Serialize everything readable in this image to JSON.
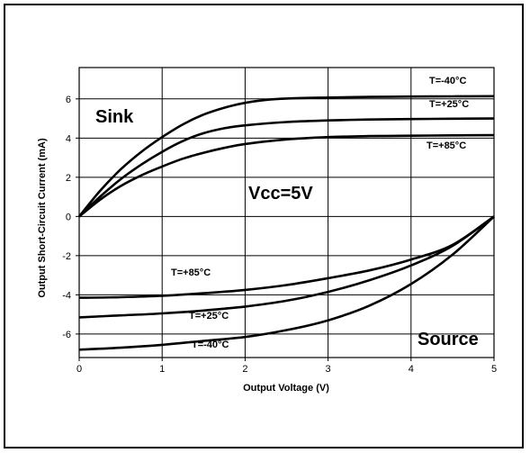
{
  "chart_data": {
    "type": "line",
    "xlabel": "Output Voltage (V)",
    "ylabel": "Output Short-Circuit Current (mA)",
    "xlim": [
      0,
      5
    ],
    "ylim": [
      -7.2,
      7.6
    ],
    "xticks": [
      0,
      1,
      2,
      3,
      4,
      5
    ],
    "yticks": [
      -6,
      -4,
      -2,
      0,
      2,
      4,
      6
    ],
    "xtick_labels": [
      "0",
      "1",
      "2",
      "3",
      "4",
      "5"
    ],
    "ytick_labels": [
      "-6",
      "-4",
      "-2",
      "0",
      "2",
      "4",
      "6"
    ],
    "grid": true,
    "series": [
      {
        "name": "T=-40°C",
        "group": "sink",
        "points": [
          [
            0,
            0
          ],
          [
            0.25,
            1.3
          ],
          [
            0.5,
            2.4
          ],
          [
            0.75,
            3.3
          ],
          [
            1,
            4.05
          ],
          [
            1.25,
            4.7
          ],
          [
            1.5,
            5.2
          ],
          [
            1.75,
            5.55
          ],
          [
            2,
            5.8
          ],
          [
            2.25,
            5.95
          ],
          [
            2.5,
            6.02
          ],
          [
            3,
            6.07
          ],
          [
            3.5,
            6.1
          ],
          [
            4,
            6.12
          ],
          [
            4.5,
            6.13
          ],
          [
            5,
            6.14
          ]
        ]
      },
      {
        "name": "T=+25°C",
        "group": "sink",
        "points": [
          [
            0,
            0
          ],
          [
            0.25,
            1.0
          ],
          [
            0.5,
            1.9
          ],
          [
            0.75,
            2.65
          ],
          [
            1,
            3.3
          ],
          [
            1.25,
            3.85
          ],
          [
            1.5,
            4.25
          ],
          [
            1.75,
            4.5
          ],
          [
            2,
            4.65
          ],
          [
            2.5,
            4.82
          ],
          [
            3,
            4.9
          ],
          [
            3.5,
            4.95
          ],
          [
            4,
            4.97
          ],
          [
            4.5,
            4.99
          ],
          [
            5,
            5.0
          ]
        ]
      },
      {
        "name": "T=+85°C",
        "group": "sink",
        "points": [
          [
            0,
            0
          ],
          [
            0.25,
            0.85
          ],
          [
            0.5,
            1.55
          ],
          [
            0.75,
            2.1
          ],
          [
            1,
            2.55
          ],
          [
            1.25,
            2.95
          ],
          [
            1.5,
            3.25
          ],
          [
            1.75,
            3.5
          ],
          [
            2,
            3.7
          ],
          [
            2.5,
            3.93
          ],
          [
            3,
            4.05
          ],
          [
            3.5,
            4.1
          ],
          [
            4,
            4.12
          ],
          [
            4.5,
            4.14
          ],
          [
            5,
            4.15
          ]
        ]
      },
      {
        "name": "T=+85°C",
        "group": "source",
        "points": [
          [
            0,
            -4.15
          ],
          [
            0.5,
            -4.12
          ],
          [
            1,
            -4.05
          ],
          [
            1.5,
            -3.92
          ],
          [
            2,
            -3.75
          ],
          [
            2.5,
            -3.5
          ],
          [
            3,
            -3.15
          ],
          [
            3.5,
            -2.75
          ],
          [
            4,
            -2.2
          ],
          [
            4.5,
            -1.45
          ],
          [
            5,
            0
          ]
        ]
      },
      {
        "name": "T=+25°C",
        "group": "source",
        "points": [
          [
            0,
            -5.15
          ],
          [
            0.5,
            -5.05
          ],
          [
            1,
            -4.95
          ],
          [
            1.5,
            -4.8
          ],
          [
            2,
            -4.6
          ],
          [
            2.5,
            -4.3
          ],
          [
            3,
            -3.85
          ],
          [
            3.5,
            -3.25
          ],
          [
            4,
            -2.5
          ],
          [
            4.5,
            -1.5
          ],
          [
            5,
            0
          ]
        ]
      },
      {
        "name": "T=-40°C",
        "group": "source",
        "points": [
          [
            0,
            -6.8
          ],
          [
            0.5,
            -6.7
          ],
          [
            1,
            -6.55
          ],
          [
            1.5,
            -6.35
          ],
          [
            2,
            -6.15
          ],
          [
            2.5,
            -5.8
          ],
          [
            3,
            -5.3
          ],
          [
            3.5,
            -4.55
          ],
          [
            4,
            -3.45
          ],
          [
            4.5,
            -1.95
          ],
          [
            5,
            0
          ]
        ]
      }
    ],
    "annotations": {
      "sink": "Sink",
      "source": "Source",
      "vcc": "Vcc=5V",
      "sink_m40": "T=-40°C",
      "sink_p25": "T=+25°C",
      "sink_p85": "T=+85°C",
      "src_p85": "T=+85°C",
      "src_p25": "T=+25°C",
      "src_m40": "T=-40°C"
    }
  }
}
